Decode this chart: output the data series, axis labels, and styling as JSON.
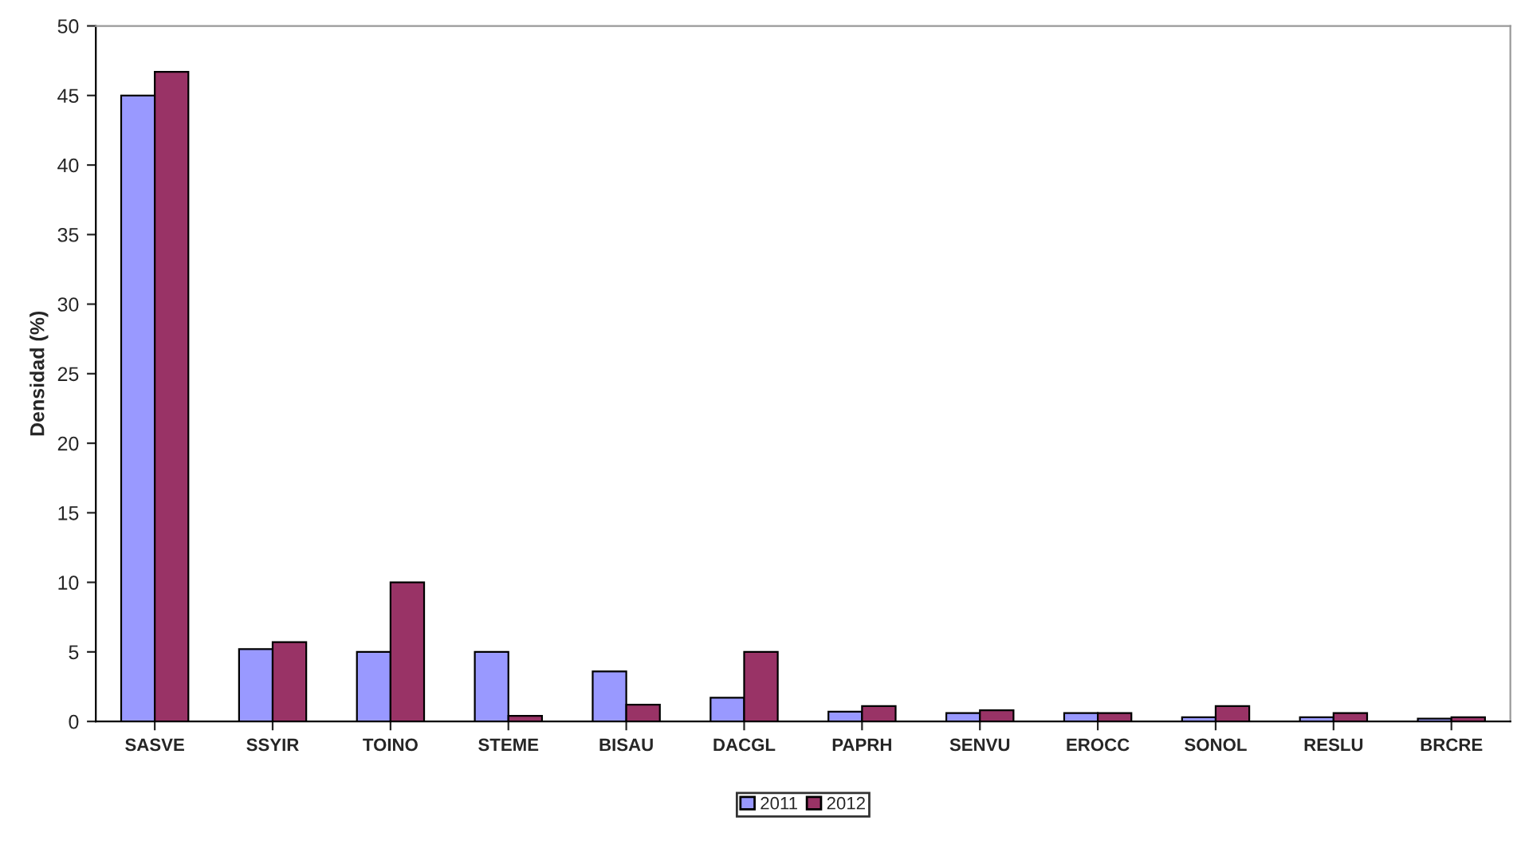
{
  "chart_data": {
    "type": "bar",
    "ylabel": "Densidad (%)",
    "categories": [
      "SASVE",
      "SSYIR",
      "TOINO",
      "STEME",
      "BISAU",
      "DACGL",
      "PAPRH",
      "SENVU",
      "EROCC",
      "SONOL",
      "RESLU",
      "BRCRE"
    ],
    "series": [
      {
        "name": "2011",
        "color": "#9999ff",
        "values": [
          45,
          5.2,
          5.0,
          5.0,
          3.6,
          1.7,
          0.7,
          0.6,
          0.6,
          0.3,
          0.3,
          0.2
        ]
      },
      {
        "name": "2012",
        "color": "#993366",
        "values": [
          46.7,
          5.7,
          10.0,
          0.4,
          1.2,
          5.0,
          1.1,
          0.8,
          0.6,
          1.1,
          0.6,
          0.3
        ]
      }
    ],
    "ylim": [
      0,
      50
    ],
    "yticks": [
      0,
      5,
      10,
      15,
      20,
      25,
      30,
      35,
      40,
      45,
      50
    ],
    "grid": false,
    "legend": "bottom"
  }
}
